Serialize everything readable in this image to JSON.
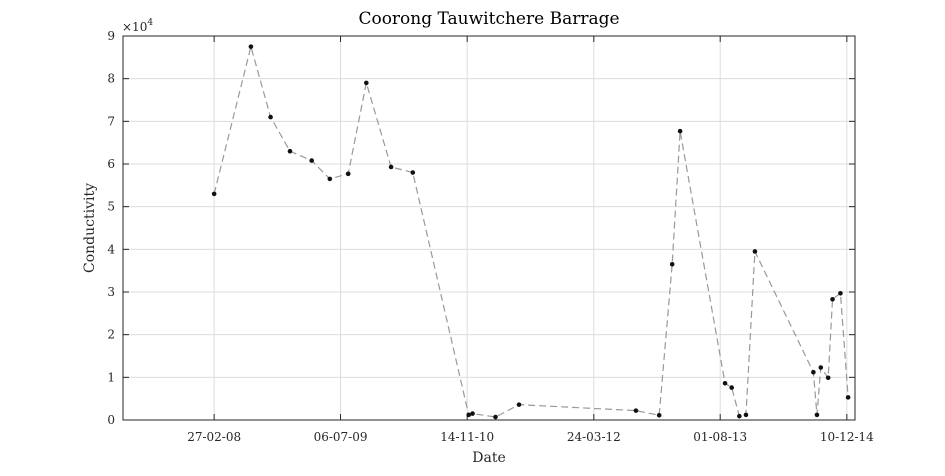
{
  "chart_data": {
    "type": "line",
    "title": "Coorong Tauwitchere Barrage",
    "xlabel": "Date",
    "ylabel": "Conductivity",
    "y_multiplier_label": "×10",
    "y_multiplier_exponent": "4",
    "xlim": [
      "2007-03-07",
      "2015-01-11"
    ],
    "ylim": [
      0,
      90000
    ],
    "x_ticks": [
      {
        "date": "2008-02-27",
        "label": "27-02-08"
      },
      {
        "date": "2009-07-06",
        "label": "06-07-09"
      },
      {
        "date": "2010-11-14",
        "label": "14-11-10"
      },
      {
        "date": "2012-03-24",
        "label": "24-03-12"
      },
      {
        "date": "2013-08-01",
        "label": "01-08-13"
      },
      {
        "date": "2014-12-10",
        "label": "10-12-14"
      }
    ],
    "y_ticks": [
      {
        "value": 0,
        "label": "0"
      },
      {
        "value": 10000,
        "label": "1"
      },
      {
        "value": 20000,
        "label": "2"
      },
      {
        "value": 30000,
        "label": "3"
      },
      {
        "value": 40000,
        "label": "4"
      },
      {
        "value": 50000,
        "label": "5"
      },
      {
        "value": 60000,
        "label": "6"
      },
      {
        "value": 70000,
        "label": "7"
      },
      {
        "value": 80000,
        "label": "8"
      },
      {
        "value": 90000,
        "label": "9"
      }
    ],
    "grid": true,
    "line_color": "#999999",
    "marker_color": "#111111",
    "series": [
      {
        "points": [
          {
            "x": "2008-02-27",
            "y": 53000
          },
          {
            "x": "2008-07-20",
            "y": 87500
          },
          {
            "x": "2008-10-05",
            "y": 71000
          },
          {
            "x": "2008-12-20",
            "y": 63000
          },
          {
            "x": "2009-03-15",
            "y": 60800
          },
          {
            "x": "2009-05-25",
            "y": 56500
          },
          {
            "x": "2009-08-05",
            "y": 57700
          },
          {
            "x": "2009-10-15",
            "y": 79000
          },
          {
            "x": "2010-01-20",
            "y": 59300
          },
          {
            "x": "2010-04-15",
            "y": 58000
          },
          {
            "x": "2010-11-20",
            "y": 1200
          },
          {
            "x": "2010-12-05",
            "y": 1500
          },
          {
            "x": "2011-03-05",
            "y": 700
          },
          {
            "x": "2011-06-05",
            "y": 3600
          },
          {
            "x": "2012-09-05",
            "y": 2200
          },
          {
            "x": "2012-12-05",
            "y": 1100
          },
          {
            "x": "2013-01-25",
            "y": 36500
          },
          {
            "x": "2013-02-25",
            "y": 67700
          },
          {
            "x": "2013-08-20",
            "y": 8600
          },
          {
            "x": "2013-09-15",
            "y": 7600
          },
          {
            "x": "2013-10-15",
            "y": 900
          },
          {
            "x": "2013-11-10",
            "y": 1200
          },
          {
            "x": "2013-12-15",
            "y": 39500
          },
          {
            "x": "2014-08-01",
            "y": 11200
          },
          {
            "x": "2014-08-15",
            "y": 1200
          },
          {
            "x": "2014-08-30",
            "y": 12300
          },
          {
            "x": "2014-09-28",
            "y": 9900
          },
          {
            "x": "2014-10-15",
            "y": 28300
          },
          {
            "x": "2014-11-15",
            "y": 29700
          },
          {
            "x": "2014-12-15",
            "y": 5300
          }
        ]
      }
    ]
  }
}
